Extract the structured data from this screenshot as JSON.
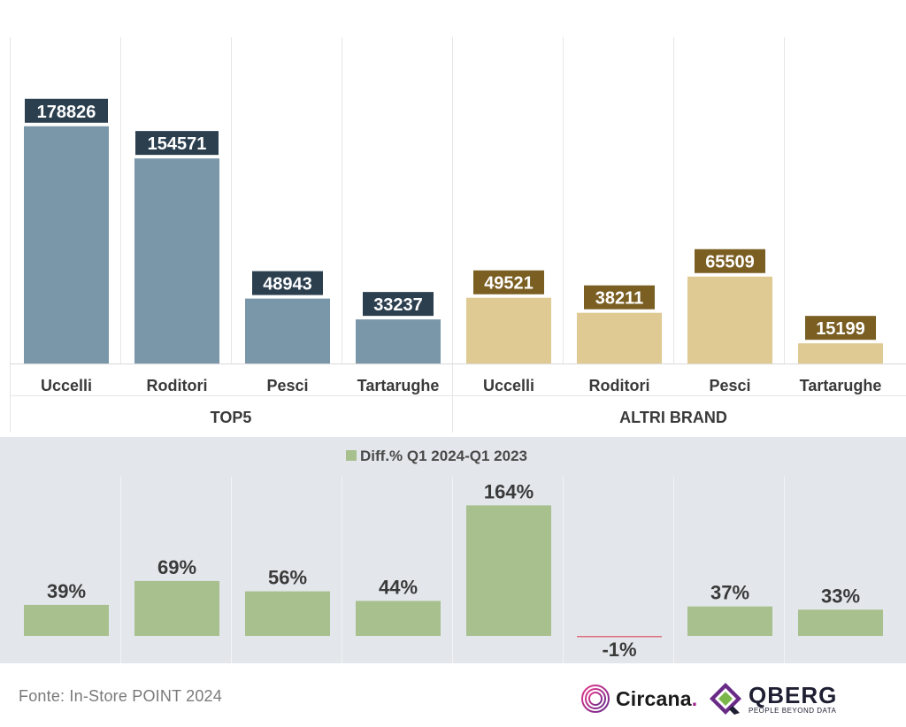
{
  "chart_data": [
    {
      "type": "bar",
      "categories": [
        "Uccelli",
        "Roditori",
        "Pesci",
        "Tartarughe",
        "Uccelli",
        "Roditori",
        "Pesci",
        "Tartarughe"
      ],
      "groups": [
        {
          "label": "TOP5",
          "categories": [
            "Uccelli",
            "Roditori",
            "Pesci",
            "Tartarughe"
          ],
          "values": [
            178826,
            154571,
            48943,
            33237
          ],
          "color": "#7a97aa",
          "label_bg": "#2b3f4f"
        },
        {
          "label": "ALTRI BRAND",
          "categories": [
            "Uccelli",
            "Roditori",
            "Pesci",
            "Tartarughe"
          ],
          "values": [
            49521,
            38211,
            65509,
            15199
          ],
          "color": "#e0ca93",
          "label_bg": "#7a5e22"
        }
      ],
      "values": [
        178826,
        154571,
        48943,
        33237,
        49521,
        38211,
        65509,
        15199
      ],
      "ylim": [
        0,
        200000
      ],
      "grid": "vertical separators"
    },
    {
      "type": "bar",
      "legend": "Diff.% Q1 2024-Q1 2023",
      "legend_position": "top-center",
      "categories": [
        "Uccelli",
        "Roditori",
        "Pesci",
        "Tartarughe",
        "Uccelli",
        "Roditori",
        "Pesci",
        "Tartarughe"
      ],
      "values": [
        39,
        69,
        56,
        44,
        164,
        -1,
        37,
        33
      ],
      "labels": [
        "39%",
        "69%",
        "56%",
        "44%",
        "164%",
        "-1%",
        "37%",
        "33%"
      ],
      "color": "#a7c08e",
      "negative_color": "#e06f7d",
      "ylim": [
        0,
        180
      ]
    }
  ],
  "footer": {
    "source": "Fonte: In-Store POINT 2024",
    "logo_circana": "Circana",
    "logo_circana_dot": ".",
    "logo_qberg": "QBERG",
    "logo_qberg_tag": "PEOPLE BEYOND DATA"
  }
}
